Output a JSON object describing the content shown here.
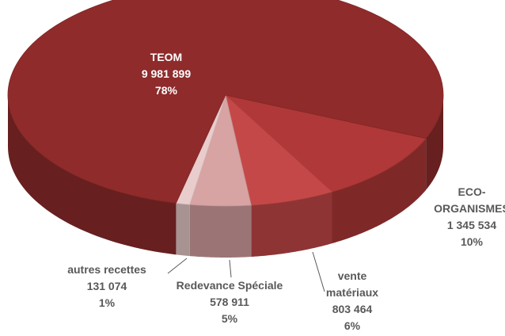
{
  "chart_data": {
    "type": "pie3d",
    "categories": [
      "TEOM",
      "ECO-ORGANISMES",
      "vente matériaux",
      "Redevance Spéciale",
      "autres recettes"
    ],
    "values": [
      9981899,
      1345534,
      803464,
      578911,
      131074
    ],
    "value_labels": [
      "9 981 899",
      "1 345 534",
      "803 464",
      "578 911",
      "131 074"
    ],
    "percents": [
      78,
      10,
      6,
      5,
      1
    ],
    "percent_labels": [
      "78%",
      "10%",
      "6%",
      "5%",
      "1%"
    ],
    "colors": [
      "#8f2b2b",
      "#b13838",
      "#c54848",
      "#d7a3a3",
      "#e9cccc"
    ]
  }
}
